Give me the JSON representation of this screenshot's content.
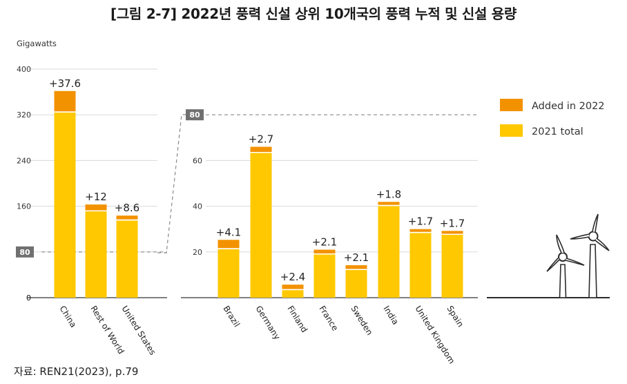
{
  "title": "[그림 2-7] 2022년 풍력 신설 상위 10개국의 풍력 누적 및 신설 용량",
  "source": "자료: REN21(2023), p.79",
  "colors": {
    "added": "#F39200",
    "base": "#FFC800",
    "grid": "#d9d9d9",
    "axis": "#555555",
    "marker": "#707070"
  },
  "chart_data": [
    {
      "type": "bar",
      "stacked": true,
      "ylabel": "Gigawatts",
      "ylim": [
        0,
        400
      ],
      "yticks": [
        0,
        80,
        160,
        240,
        320,
        400
      ],
      "highlight_tick": "80",
      "categories": [
        "China",
        "Rest of World",
        "United States"
      ],
      "series": [
        {
          "name": "2021 total",
          "values": [
            324,
            151,
            135
          ]
        },
        {
          "name": "Added in 2022",
          "values": [
            37.6,
            12,
            8.6
          ]
        }
      ],
      "data_labels": [
        "+37.6",
        "+12",
        "+8.6"
      ]
    },
    {
      "type": "bar",
      "stacked": true,
      "ylim": [
        0,
        80
      ],
      "yticks": [
        20,
        40,
        60
      ],
      "highlight_tick": "80",
      "categories": [
        "Brazil",
        "Germany",
        "Finland",
        "France",
        "Sweden",
        "India",
        "United Kingdom",
        "Spain"
      ],
      "series": [
        {
          "name": "2021 total",
          "values": [
            21.2,
            63.3,
            3.3,
            18.9,
            12.1,
            40.1,
            28.3,
            27.5
          ]
        },
        {
          "name": "Added in 2022",
          "values": [
            4.1,
            2.7,
            2.4,
            2.1,
            2.1,
            1.8,
            1.7,
            1.7
          ]
        }
      ],
      "data_labels": [
        "+4.1",
        "+2.7",
        "+2.4",
        "+2.1",
        "+2.1",
        "+1.8",
        "+1.7",
        "+1.7"
      ]
    }
  ],
  "legend": [
    {
      "label": "Added in 2022",
      "color": "#F39200"
    },
    {
      "label": "2021 total",
      "color": "#FFC800"
    }
  ]
}
